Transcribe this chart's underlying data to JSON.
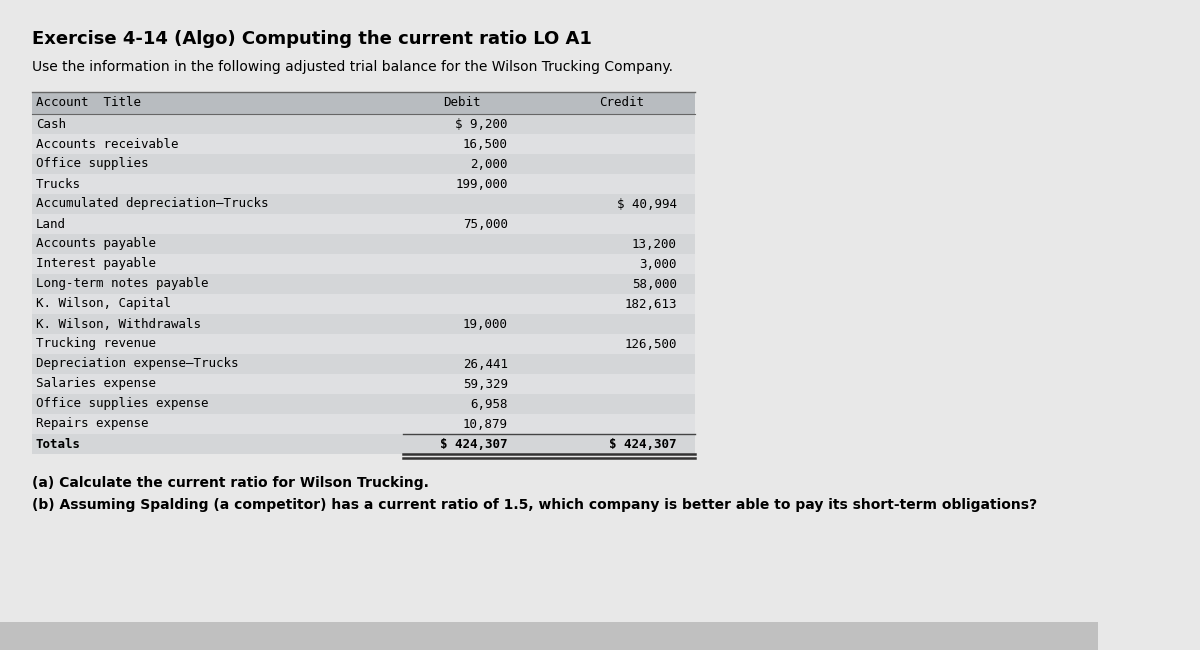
{
  "title": "Exercise 4-14 (Algo) Computing the current ratio LO A1",
  "subtitle": "Use the information in the following adjusted trial balance for the Wilson Trucking Company.",
  "bg_color": "#e8e8e8",
  "header_bg": "#b8bcc0",
  "row_even": "#d4d6d8",
  "row_odd": "#dfe0e2",
  "rows": [
    [
      "Cash",
      "$ 9,200",
      ""
    ],
    [
      "Accounts receivable",
      "16,500",
      ""
    ],
    [
      "Office supplies",
      "2,000",
      ""
    ],
    [
      "Trucks",
      "199,000",
      ""
    ],
    [
      "Accumulated depreciation–Trucks",
      "",
      "$ 40,994"
    ],
    [
      "Land",
      "75,000",
      ""
    ],
    [
      "Accounts payable",
      "",
      "13,200"
    ],
    [
      "Interest payable",
      "",
      "3,000"
    ],
    [
      "Long-term notes payable",
      "",
      "58,000"
    ],
    [
      "K. Wilson, Capital",
      "",
      "182,613"
    ],
    [
      "K. Wilson, Withdrawals",
      "19,000",
      ""
    ],
    [
      "Trucking revenue",
      "",
      "126,500"
    ],
    [
      "Depreciation expense–Trucks",
      "26,441",
      ""
    ],
    [
      "Salaries expense",
      "59,329",
      ""
    ],
    [
      "Office supplies expense",
      "6,958",
      ""
    ],
    [
      "Repairs expense",
      "10,879",
      ""
    ],
    [
      "Totals",
      "$ 424,307",
      "$ 424,307"
    ]
  ],
  "footer_a": "(a) Calculate the current ratio for Wilson Trucking.",
  "footer_b": "(b) Assuming Spalding (a competitor) has a current ratio of 1.5, which company is better able to pay its short-term obligations?",
  "title_fontsize": 13,
  "subtitle_fontsize": 10,
  "table_fontsize": 9,
  "footer_fontsize": 10
}
